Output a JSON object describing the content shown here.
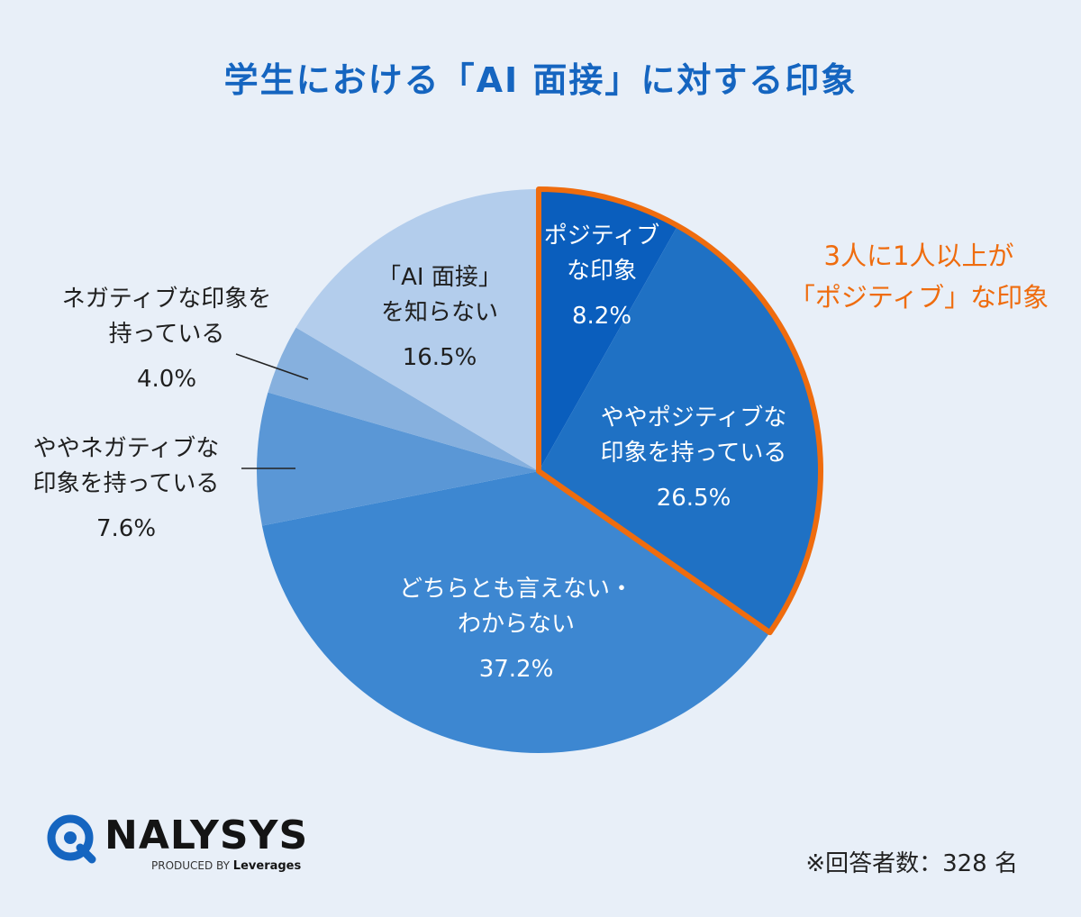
{
  "chart_data": {
    "type": "pie",
    "title": "学生における「AI 面接」に対する印象",
    "start_angle_deg": 0,
    "direction": "clockwise",
    "slices": [
      {
        "label_lines": [
          "ポジティブ",
          "な印象"
        ],
        "value": 8.2,
        "value_label": "8.2%",
        "color": "#0a5ebd"
      },
      {
        "label_lines": [
          "ややポジティブな",
          "印象を持っている"
        ],
        "value": 26.5,
        "value_label": "26.5%",
        "color": "#1f71c4"
      },
      {
        "label_lines": [
          "どちらとも言えない・",
          "わからない"
        ],
        "value": 37.2,
        "value_label": "37.2%",
        "color": "#3d87d1"
      },
      {
        "label_lines": [
          "ややネガティブな",
          "印象を持っている"
        ],
        "value": 7.6,
        "value_label": "7.6%",
        "color": "#5a97d6"
      },
      {
        "label_lines": [
          "ネガティブな印象を",
          "持っている"
        ],
        "value": 4.0,
        "value_label": "4.0%",
        "color": "#86b0de"
      },
      {
        "label_lines": [
          "「AI 面接」",
          "を知らない"
        ],
        "value": 16.5,
        "value_label": "16.5%",
        "color": "#b3cdec"
      }
    ],
    "highlight": {
      "slices": [
        0,
        1
      ],
      "color": "#ef6c0e",
      "callout_lines": [
        "3人に1人以上が",
        "「ポジティブ」な印象"
      ]
    }
  },
  "footer": {
    "logo_name": "NALYSYS",
    "logo_sub_prefix": "PRODUCED BY",
    "logo_sub_brand": "Leverages",
    "logo_icon": "magnifier-q-icon",
    "respondents": "※回答者数：328 名"
  }
}
